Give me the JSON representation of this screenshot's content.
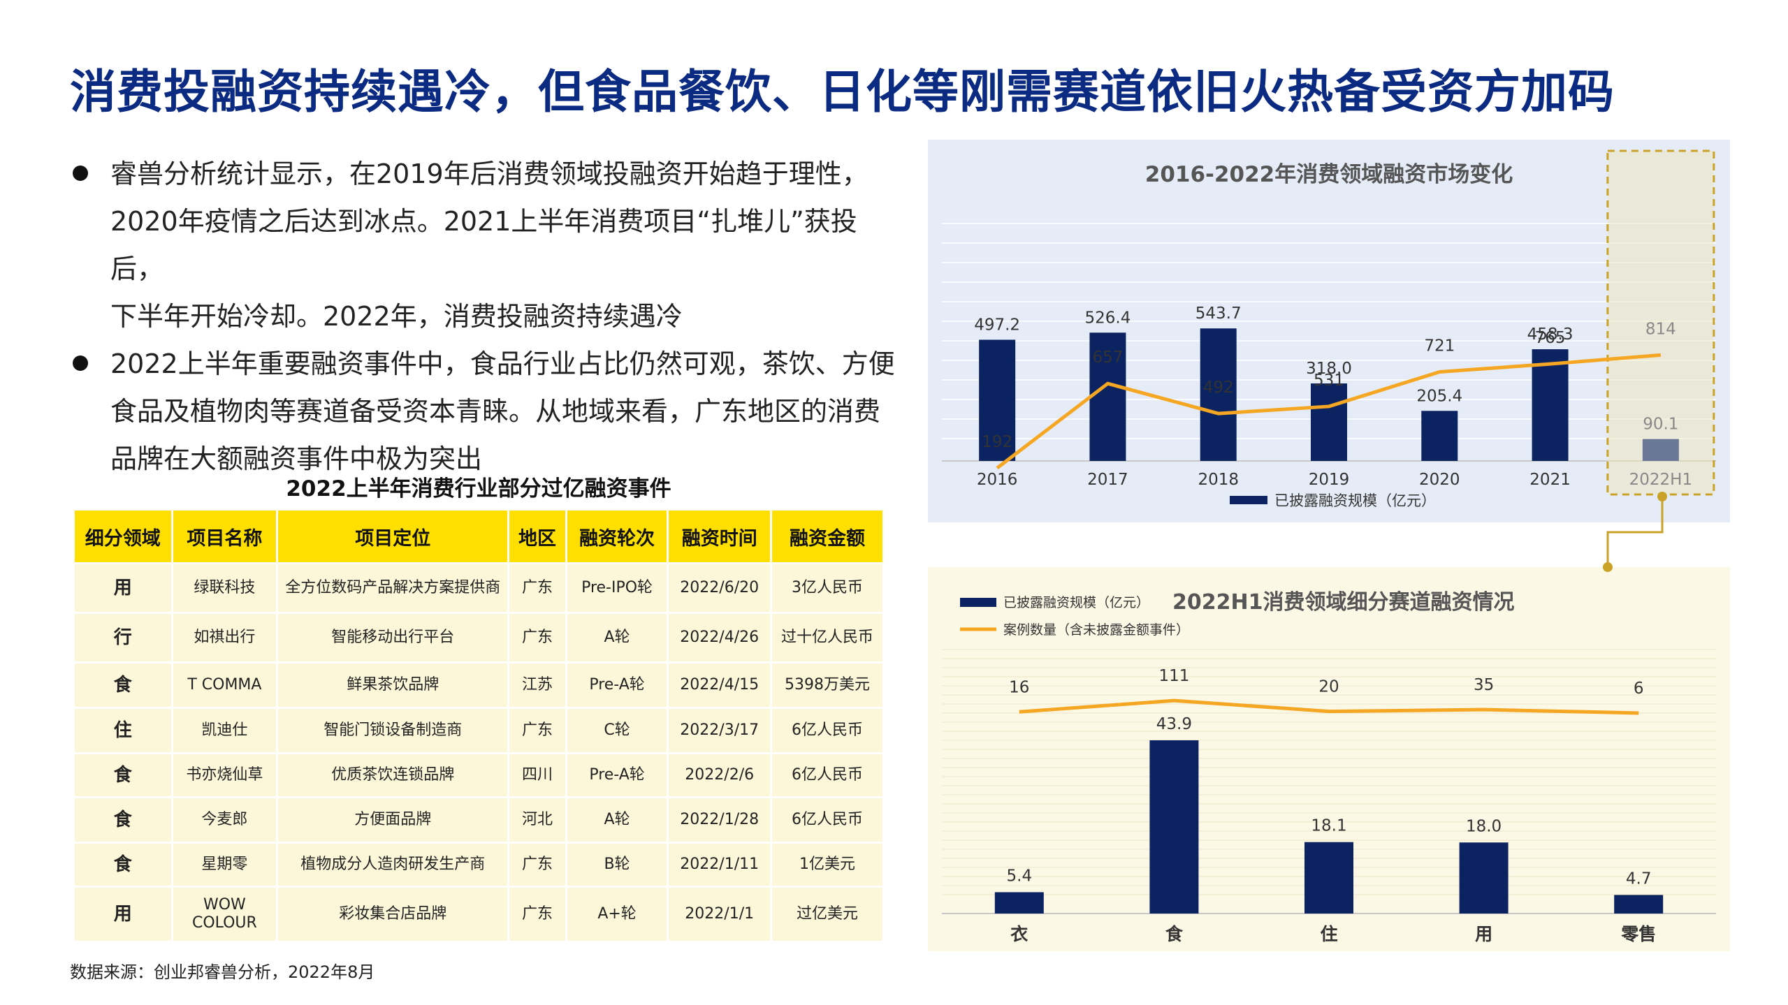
{
  "page": {
    "title": "消费投融资持续遇冷，但食品餐饮、日化等刚需赛道依旧火热备受资方加码",
    "bullets": [
      [
        "睿兽分析统计显示，在2019年后消费领域投融资开始趋于理性，",
        "2020年疫情之后达到冰点。2021上半年消费项目“扎堆儿”获投后，",
        "下半年开始冷却。2022年，消费投融资持续遇冷"
      ],
      [
        "2022上半年重要融资事件中，食品行业占比仍然可观，茶饮、方便",
        "食品及植物肉等赛道备受资本青睐。从地域来看，广东地区的消费",
        "品牌在大额融资事件中极为突出"
      ]
    ],
    "source": "数据来源：创业邦睿兽分析，2022年8月"
  },
  "table": {
    "title": "2022上半年消费行业部分过亿融资事件",
    "header": [
      "细分领域",
      "项目名称",
      "项目定位",
      "地区",
      "融资轮次",
      "融资时间",
      "融资金额"
    ],
    "rows": [
      [
        "用",
        "绿联科技",
        "全方位数码产品解决方案提供商",
        "广东",
        "Pre-IPO轮",
        "2022/6/20",
        "3亿人民币"
      ],
      [
        "行",
        "如祺出行",
        "智能移动出行平台",
        "广东",
        "A轮",
        "2022/4/26",
        "过十亿人民币"
      ],
      [
        "食",
        "T COMMA",
        "鲜果茶饮品牌",
        "江苏",
        "Pre-A轮",
        "2022/4/15",
        "5398万美元"
      ],
      [
        "住",
        "凯迪仕",
        "智能门锁设备制造商",
        "广东",
        "C轮",
        "2022/3/17",
        "6亿人民币"
      ],
      [
        "食",
        "书亦烧仙草",
        "优质茶饮连锁品牌",
        "四川",
        "Pre-A轮",
        "2022/2/6",
        "6亿人民币"
      ],
      [
        "食",
        "今麦郎",
        "方便面品牌",
        "河北",
        "A轮",
        "2022/1/28",
        "6亿人民币"
      ],
      [
        "食",
        "星期零",
        "植物成分人造肉研发生产商",
        "广东",
        "B轮",
        "2022/1/11",
        "1亿美元"
      ],
      [
        "用",
        "WOW\nCOLOUR",
        "彩妆集合店品牌",
        "广东",
        "A+轮",
        "2022/1/1",
        "过亿美元"
      ]
    ]
  },
  "colors": {
    "navy": "#0b2361",
    "orange": "#f5a623",
    "highlight": "#c9a227",
    "header_yellow": "#ffdf00",
    "title_blue": "#0b2a82"
  },
  "chart_data": [
    {
      "type": "bar",
      "title": "2016-2022年消费领域融资市场变化",
      "categories": [
        "2016",
        "2017",
        "2018",
        "2019",
        "2020",
        "2021",
        "2022H1"
      ],
      "series": [
        {
          "name": "已披露融资规模（亿元）",
          "type": "bar",
          "values": [
            497.2,
            526.4,
            543.7,
            318.0,
            205.4,
            458.3,
            90.1
          ]
        },
        {
          "type": "line",
          "values": [
            192,
            657,
            492,
            531,
            721,
            765,
            814
          ]
        }
      ],
      "highlight_category": "2022H1",
      "legend": "bottom",
      "grid": true
    },
    {
      "type": "bar",
      "title": "2022H1消费领域细分赛道融资情况",
      "categories": [
        "衣",
        "食",
        "住",
        "用",
        "零售"
      ],
      "series": [
        {
          "name": "已披露融资规模（亿元）",
          "type": "bar",
          "values": [
            5.4,
            43.9,
            18.1,
            18.0,
            4.7
          ]
        },
        {
          "name": "案例数量（含未披露金额事件）",
          "type": "line",
          "values": [
            16,
            111,
            20,
            35,
            6
          ]
        }
      ],
      "legend": "top-left",
      "grid": true
    }
  ]
}
